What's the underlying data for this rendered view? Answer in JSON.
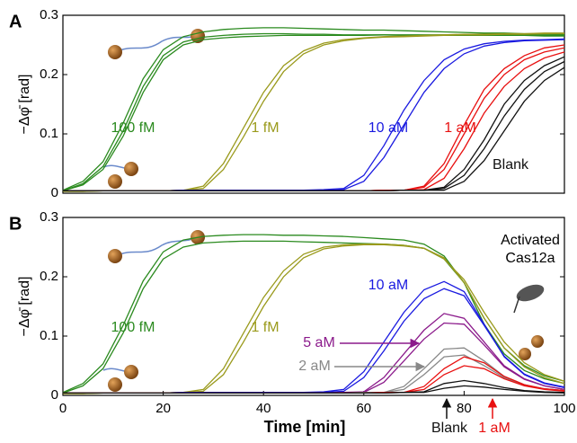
{
  "chart_data": [
    {
      "type": "line",
      "label": "A",
      "ylabel": "−Δφ̄ [rad]",
      "xlim": [
        0,
        100
      ],
      "ylim": [
        0,
        0.3
      ],
      "yticks": [
        0,
        0.1,
        0.2,
        0.3
      ],
      "x": [
        0,
        4,
        8,
        12,
        16,
        20,
        24,
        28,
        32,
        36,
        40,
        44,
        48,
        52,
        56,
        60,
        64,
        68,
        72,
        76,
        80,
        84,
        88,
        92,
        96,
        100
      ],
      "series": [
        {
          "name": "100 fM",
          "color": "#2a8a1e",
          "curves": [
            [
              0.005,
              0.02,
              0.053,
              0.118,
              0.193,
              0.242,
              0.264,
              0.272,
              0.276,
              0.278,
              0.279,
              0.279,
              0.278,
              0.277,
              0.276,
              0.275,
              0.275,
              0.274,
              0.273,
              0.272,
              0.271,
              0.27,
              0.27,
              0.269,
              0.269,
              0.268
            ],
            [
              0.004,
              0.016,
              0.045,
              0.105,
              0.18,
              0.232,
              0.255,
              0.263,
              0.266,
              0.268,
              0.269,
              0.269,
              0.268,
              0.268,
              0.267,
              0.267,
              0.267,
              0.266,
              0.266,
              0.266,
              0.266,
              0.266,
              0.266,
              0.266,
              0.265,
              0.265
            ],
            [
              0.004,
              0.014,
              0.04,
              0.096,
              0.17,
              0.225,
              0.25,
              0.259,
              0.262,
              0.264,
              0.265,
              0.266,
              0.266,
              0.266,
              0.266,
              0.266,
              0.267,
              0.267,
              0.267,
              0.267,
              0.267,
              0.267,
              0.267,
              0.267,
              0.267,
              0.267
            ]
          ]
        },
        {
          "name": "1 fM",
          "color": "#9a9a1c",
          "curves": [
            [
              0.003,
              0.003,
              0.004,
              0.004,
              0.004,
              0.004,
              0.005,
              0.012,
              0.05,
              0.11,
              0.17,
              0.215,
              0.24,
              0.253,
              0.259,
              0.262,
              0.264,
              0.265,
              0.266,
              0.267,
              0.268,
              0.268,
              0.269,
              0.269,
              0.27,
              0.27
            ],
            [
              0.003,
              0.003,
              0.004,
              0.004,
              0.004,
              0.004,
              0.005,
              0.008,
              0.04,
              0.095,
              0.155,
              0.205,
              0.235,
              0.25,
              0.257,
              0.261,
              0.263,
              0.264,
              0.265,
              0.266,
              0.267,
              0.267,
              0.268,
              0.268,
              0.269,
              0.269
            ]
          ]
        },
        {
          "name": "10 aM",
          "color": "#1a1ae0",
          "curves": [
            [
              0.004,
              0.004,
              0.004,
              0.004,
              0.004,
              0.004,
              0.005,
              0.005,
              0.005,
              0.005,
              0.005,
              0.005,
              0.005,
              0.006,
              0.008,
              0.03,
              0.08,
              0.14,
              0.19,
              0.225,
              0.243,
              0.252,
              0.256,
              0.258,
              0.259,
              0.26
            ],
            [
              0.004,
              0.004,
              0.004,
              0.004,
              0.004,
              0.004,
              0.005,
              0.005,
              0.005,
              0.005,
              0.005,
              0.005,
              0.005,
              0.005,
              0.006,
              0.02,
              0.06,
              0.115,
              0.17,
              0.21,
              0.235,
              0.248,
              0.254,
              0.257,
              0.258,
              0.259
            ]
          ]
        },
        {
          "name": "1 aM",
          "color": "#e81010",
          "curves": [
            [
              0.004,
              0.004,
              0.004,
              0.004,
              0.004,
              0.004,
              0.004,
              0.004,
              0.004,
              0.004,
              0.004,
              0.004,
              0.004,
              0.004,
              0.004,
              0.004,
              0.005,
              0.005,
              0.01,
              0.04,
              0.1,
              0.16,
              0.2,
              0.225,
              0.238,
              0.245
            ],
            [
              0.004,
              0.004,
              0.004,
              0.004,
              0.004,
              0.004,
              0.004,
              0.004,
              0.004,
              0.004,
              0.004,
              0.004,
              0.004,
              0.004,
              0.004,
              0.004,
              0.005,
              0.005,
              0.006,
              0.025,
              0.075,
              0.135,
              0.18,
              0.21,
              0.228,
              0.238
            ],
            [
              0.004,
              0.004,
              0.004,
              0.004,
              0.004,
              0.004,
              0.004,
              0.004,
              0.004,
              0.004,
              0.004,
              0.004,
              0.004,
              0.004,
              0.004,
              0.004,
              0.005,
              0.005,
              0.012,
              0.05,
              0.115,
              0.175,
              0.21,
              0.232,
              0.245,
              0.25
            ]
          ]
        },
        {
          "name": "Blank",
          "color": "#111111",
          "curves": [
            [
              0.004,
              0.004,
              0.004,
              0.004,
              0.004,
              0.004,
              0.004,
              0.004,
              0.004,
              0.004,
              0.004,
              0.004,
              0.004,
              0.004,
              0.004,
              0.004,
              0.004,
              0.005,
              0.005,
              0.008,
              0.03,
              0.075,
              0.13,
              0.175,
              0.205,
              0.222
            ],
            [
              0.004,
              0.004,
              0.004,
              0.004,
              0.004,
              0.004,
              0.004,
              0.004,
              0.004,
              0.004,
              0.004,
              0.004,
              0.004,
              0.004,
              0.004,
              0.004,
              0.004,
              0.005,
              0.005,
              0.005,
              0.02,
              0.055,
              0.105,
              0.155,
              0.19,
              0.212
            ],
            [
              0.004,
              0.004,
              0.004,
              0.004,
              0.004,
              0.004,
              0.004,
              0.004,
              0.004,
              0.004,
              0.004,
              0.004,
              0.004,
              0.004,
              0.004,
              0.004,
              0.004,
              0.005,
              0.005,
              0.01,
              0.04,
              0.09,
              0.15,
              0.19,
              0.215,
              0.23
            ]
          ]
        }
      ]
    },
    {
      "type": "line",
      "label": "B",
      "ylabel": "−Δφ̄ [rad]",
      "xlabel": "Time [min]",
      "xlim": [
        0,
        100
      ],
      "ylim": [
        0,
        0.3
      ],
      "yticks": [
        0,
        0.1,
        0.2,
        0.3
      ],
      "xticks": [
        0,
        20,
        40,
        60,
        80,
        100
      ],
      "annotation": [
        "Activated",
        "Cas12a"
      ],
      "x": [
        0,
        4,
        8,
        12,
        16,
        20,
        24,
        28,
        32,
        36,
        40,
        44,
        48,
        52,
        56,
        60,
        64,
        68,
        72,
        76,
        80,
        84,
        88,
        92,
        96,
        100
      ],
      "series": [
        {
          "name": "100 fM",
          "color": "#2a8a1e",
          "curves": [
            [
              0.005,
              0.02,
              0.053,
              0.118,
              0.193,
              0.242,
              0.262,
              0.268,
              0.27,
              0.271,
              0.271,
              0.27,
              0.27,
              0.269,
              0.268,
              0.266,
              0.264,
              0.262,
              0.255,
              0.235,
              0.19,
              0.12,
              0.07,
              0.042,
              0.028,
              0.02
            ],
            [
              0.004,
              0.016,
              0.045,
              0.105,
              0.18,
              0.23,
              0.25,
              0.257,
              0.259,
              0.26,
              0.26,
              0.26,
              0.259,
              0.258,
              0.257,
              0.256,
              0.255,
              0.253,
              0.248,
              0.23,
              0.19,
              0.13,
              0.08,
              0.05,
              0.033,
              0.024
            ]
          ]
        },
        {
          "name": "1 fM",
          "color": "#9a9a1c",
          "curves": [
            [
              0.003,
              0.003,
              0.004,
              0.004,
              0.004,
              0.004,
              0.005,
              0.01,
              0.045,
              0.105,
              0.165,
              0.21,
              0.238,
              0.25,
              0.254,
              0.255,
              0.255,
              0.253,
              0.248,
              0.232,
              0.19,
              0.13,
              0.08,
              0.048,
              0.03,
              0.02
            ],
            [
              0.003,
              0.003,
              0.004,
              0.004,
              0.004,
              0.004,
              0.005,
              0.007,
              0.035,
              0.09,
              0.15,
              0.2,
              0.232,
              0.247,
              0.252,
              0.254,
              0.254,
              0.252,
              0.248,
              0.23,
              0.195,
              0.14,
              0.09,
              0.055,
              0.035,
              0.024
            ]
          ]
        },
        {
          "name": "10 aM",
          "color": "#1a1ae0",
          "curves": [
            [
              0.004,
              0.004,
              0.004,
              0.004,
              0.004,
              0.004,
              0.005,
              0.005,
              0.005,
              0.005,
              0.005,
              0.005,
              0.005,
              0.006,
              0.01,
              0.04,
              0.09,
              0.14,
              0.178,
              0.192,
              0.175,
              0.12,
              0.065,
              0.035,
              0.02,
              0.013
            ],
            [
              0.004,
              0.004,
              0.004,
              0.004,
              0.004,
              0.004,
              0.005,
              0.005,
              0.005,
              0.005,
              0.005,
              0.005,
              0.005,
              0.005,
              0.007,
              0.03,
              0.075,
              0.125,
              0.163,
              0.18,
              0.168,
              0.118,
              0.066,
              0.036,
              0.021,
              0.014
            ]
          ]
        },
        {
          "name": "5 aM",
          "color": "#8b1a8b",
          "curves": [
            [
              0.004,
              0.004,
              0.004,
              0.004,
              0.004,
              0.004,
              0.004,
              0.004,
              0.004,
              0.004,
              0.004,
              0.004,
              0.004,
              0.004,
              0.005,
              0.006,
              0.03,
              0.07,
              0.11,
              0.138,
              0.13,
              0.09,
              0.05,
              0.028,
              0.016,
              0.01
            ],
            [
              0.004,
              0.004,
              0.004,
              0.004,
              0.004,
              0.004,
              0.004,
              0.004,
              0.004,
              0.004,
              0.004,
              0.004,
              0.004,
              0.004,
              0.005,
              0.005,
              0.022,
              0.058,
              0.095,
              0.122,
              0.12,
              0.085,
              0.048,
              0.027,
              0.016,
              0.01
            ]
          ]
        },
        {
          "name": "2 aM",
          "color": "#888888",
          "curves": [
            [
              0.004,
              0.004,
              0.004,
              0.004,
              0.004,
              0.004,
              0.004,
              0.004,
              0.004,
              0.004,
              0.004,
              0.004,
              0.004,
              0.004,
              0.004,
              0.005,
              0.005,
              0.015,
              0.045,
              0.078,
              0.08,
              0.058,
              0.032,
              0.018,
              0.011,
              0.008
            ],
            [
              0.004,
              0.004,
              0.004,
              0.004,
              0.004,
              0.004,
              0.004,
              0.004,
              0.004,
              0.004,
              0.004,
              0.004,
              0.004,
              0.004,
              0.004,
              0.005,
              0.005,
              0.01,
              0.035,
              0.065,
              0.068,
              0.05,
              0.03,
              0.017,
              0.011,
              0.008
            ]
          ]
        },
        {
          "name": "1 aM",
          "color": "#e81010",
          "curves": [
            [
              0.004,
              0.004,
              0.004,
              0.004,
              0.004,
              0.004,
              0.004,
              0.004,
              0.004,
              0.004,
              0.004,
              0.004,
              0.004,
              0.004,
              0.004,
              0.004,
              0.005,
              0.005,
              0.015,
              0.045,
              0.065,
              0.055,
              0.032,
              0.018,
              0.011,
              0.008
            ],
            [
              0.004,
              0.004,
              0.004,
              0.004,
              0.004,
              0.004,
              0.004,
              0.004,
              0.004,
              0.004,
              0.004,
              0.004,
              0.004,
              0.004,
              0.004,
              0.004,
              0.005,
              0.005,
              0.01,
              0.035,
              0.05,
              0.045,
              0.028,
              0.016,
              0.01,
              0.007
            ]
          ]
        },
        {
          "name": "Blank",
          "color": "#111111",
          "curves": [
            [
              0.004,
              0.004,
              0.004,
              0.004,
              0.004,
              0.004,
              0.004,
              0.004,
              0.004,
              0.004,
              0.004,
              0.004,
              0.004,
              0.004,
              0.004,
              0.004,
              0.004,
              0.005,
              0.006,
              0.02,
              0.025,
              0.02,
              0.013,
              0.008,
              0.006,
              0.005
            ],
            [
              0.004,
              0.004,
              0.004,
              0.004,
              0.004,
              0.004,
              0.004,
              0.004,
              0.004,
              0.004,
              0.004,
              0.004,
              0.004,
              0.004,
              0.004,
              0.004,
              0.004,
              0.005,
              0.005,
              0.012,
              0.016,
              0.014,
              0.01,
              0.007,
              0.005,
              0.004
            ]
          ]
        }
      ]
    }
  ]
}
